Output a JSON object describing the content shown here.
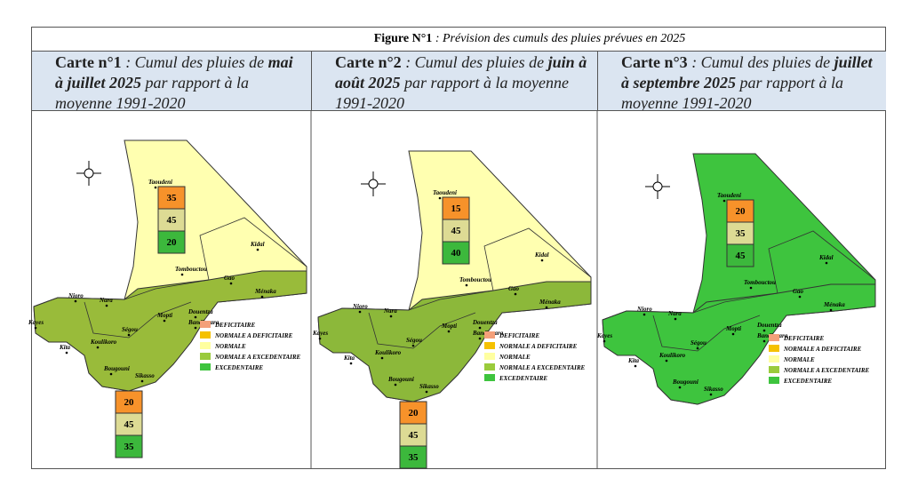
{
  "title": {
    "label": "Figure N°1",
    "text": " : Prévision des cumuls des pluies prévues en 2025"
  },
  "maps": [
    {
      "carte": "Carte n°1",
      "intro": " : Cumul des pluies de ",
      "period": "mai à juillet 2025",
      "rest": " par rapport à la moyenne 1991-2020",
      "north": [
        35,
        45,
        20
      ],
      "south": [
        20,
        45,
        35
      ]
    },
    {
      "carte": "Carte n°2",
      "intro": " : Cumul des pluies de ",
      "period": "juin à août 2025",
      "rest": " par rapport à la moyenne 1991-2020",
      "north": [
        15,
        45,
        40
      ],
      "south": [
        20,
        45,
        35
      ]
    },
    {
      "carte": "Carte n°3",
      "intro": " : Cumul des pluies de ",
      "period": "juillet à septembre 2025",
      "rest": " par rapport à la moyenne 1991-2020",
      "north": [
        20,
        35,
        45
      ]
    }
  ],
  "legend": [
    "DEFICITAIRE",
    "NORMALE A DEFICITAIRE",
    "NORMALE",
    "NORMALE A EXCEDENTAIRE",
    "EXCEDENTAIRE"
  ],
  "places": [
    "Taoudeni",
    "Kidal",
    "Tombouctou",
    "Gao",
    "Ménaka",
    "Nioro",
    "Nara",
    "Kayes",
    "Kita",
    "Koulikoro",
    "Ségou",
    "Mopti",
    "Douentza",
    "Bandiagara",
    "Bougouni",
    "Sikasso"
  ]
}
